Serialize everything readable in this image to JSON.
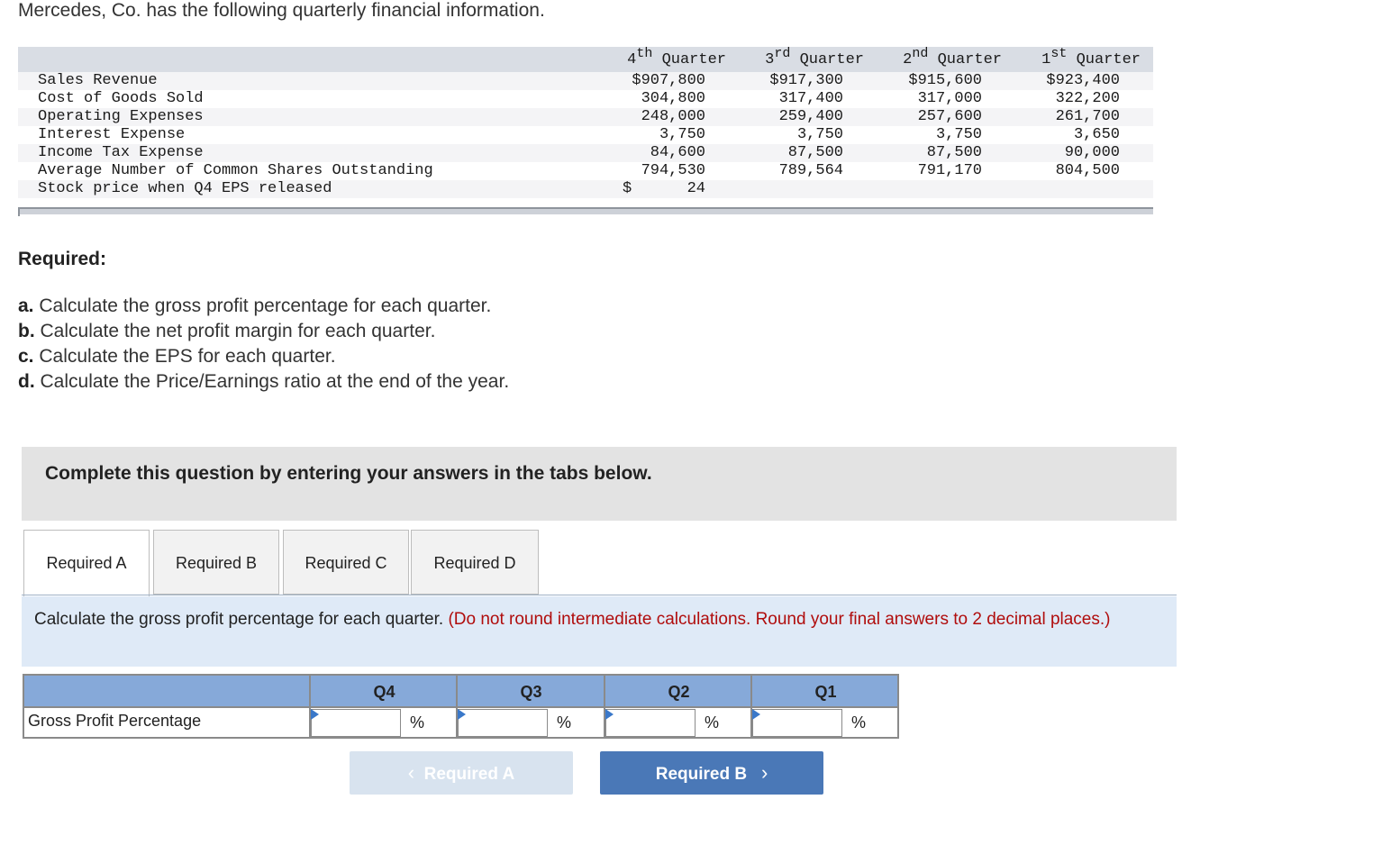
{
  "intro": "Mercedes, Co. has the following quarterly financial information.",
  "table": {
    "headers": [
      {
        "num": "4",
        "sup": "th",
        "word": "Quarter"
      },
      {
        "num": "3",
        "sup": "rd",
        "word": "Quarter"
      },
      {
        "num": "2",
        "sup": "nd",
        "word": "Quarter"
      },
      {
        "num": "1",
        "sup": "st",
        "word": "Quarter"
      }
    ],
    "rows": [
      {
        "label": "Sales Revenue",
        "values": [
          "$907,800",
          "$917,300",
          "$915,600",
          "$923,400"
        ]
      },
      {
        "label": "Cost of Goods Sold",
        "values": [
          "304,800",
          "317,400",
          "317,000",
          "322,200"
        ]
      },
      {
        "label": "Operating Expenses",
        "values": [
          "248,000",
          "259,400",
          "257,600",
          "261,700"
        ]
      },
      {
        "label": "Interest Expense",
        "values": [
          "3,750",
          "3,750",
          "3,750",
          "3,650"
        ]
      },
      {
        "label": "Income Tax Expense",
        "values": [
          "84,600",
          "87,500",
          "87,500",
          "90,000"
        ]
      },
      {
        "label": "Average Number of Common Shares Outstanding",
        "values": [
          "794,530",
          "789,564",
          "791,170",
          "804,500"
        ]
      },
      {
        "label": "Stock price when Q4 EPS released",
        "dollar": "$",
        "values": [
          "24",
          "",
          "",
          ""
        ]
      }
    ]
  },
  "required": {
    "title": "Required:",
    "items": [
      {
        "letter": "a.",
        "text": " Calculate the gross profit percentage for each quarter."
      },
      {
        "letter": "b.",
        "text": " Calculate the net profit margin for each quarter."
      },
      {
        "letter": "c.",
        "text": " Calculate the EPS for each quarter."
      },
      {
        "letter": "d.",
        "text": " Calculate the Price/Earnings ratio at the end of the year."
      }
    ]
  },
  "panel_title": "Complete this question by entering your answers in the tabs below.",
  "tabs": [
    "Required A",
    "Required B",
    "Required C",
    "Required D"
  ],
  "instruction": {
    "main": "Calculate the gross profit percentage for each quarter. ",
    "note": "(Do not round intermediate calculations. Round your final answers to 2 decimal places.)"
  },
  "answer_table": {
    "columns": [
      "Q4",
      "Q3",
      "Q2",
      "Q1"
    ],
    "row_label": "Gross Profit Percentage",
    "unit": "%"
  },
  "buttons": {
    "prev": "Required A",
    "next": "Required B"
  },
  "colors": {
    "header_blue": "#86a9d9",
    "next_button": "#4a78b7",
    "note_red": "#b00d0d"
  }
}
